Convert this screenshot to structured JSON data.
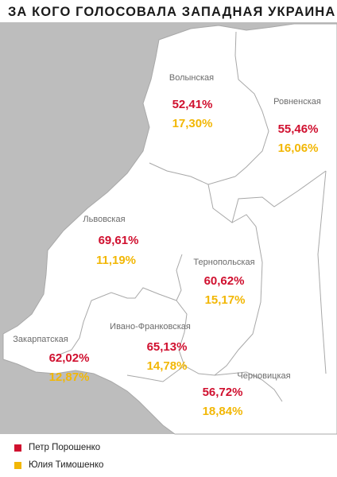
{
  "title": "ЗА КОГО ГОЛОСОВАЛА ЗАПАДНАЯ УКРАИНА",
  "colors": {
    "poroshenko": "#d0102f",
    "tymoshenko": "#f2b705",
    "land": "#ffffff",
    "outside": "#bdbdbd",
    "border": "#9a9a9a"
  },
  "regions": [
    {
      "name": "Волынская",
      "poroshenko": "52,41%",
      "tymoshenko": "17,30%"
    },
    {
      "name": "Ровненская",
      "poroshenko": "55,46%",
      "tymoshenko": "16,06%"
    },
    {
      "name": "Львовская",
      "poroshenko": "69,61%",
      "tymoshenko": "11,19%"
    },
    {
      "name": "Тернопольская",
      "poroshenko": "60,62%",
      "tymoshenko": "15,17%"
    },
    {
      "name": "Ивано-Франковская",
      "poroshenko": "65,13%",
      "tymoshenko": "14,78%"
    },
    {
      "name": "Закарпатская",
      "poroshenko": "62,02%",
      "tymoshenko": "12,87%"
    },
    {
      "name": "Черновицкая",
      "poroshenko": "56,72%",
      "tymoshenko": "18,84%"
    }
  ],
  "legend": [
    {
      "label": "Петр Порошенко",
      "color": "#d0102f"
    },
    {
      "label": "Юлия Тимошенко",
      "color": "#f2b705"
    }
  ]
}
